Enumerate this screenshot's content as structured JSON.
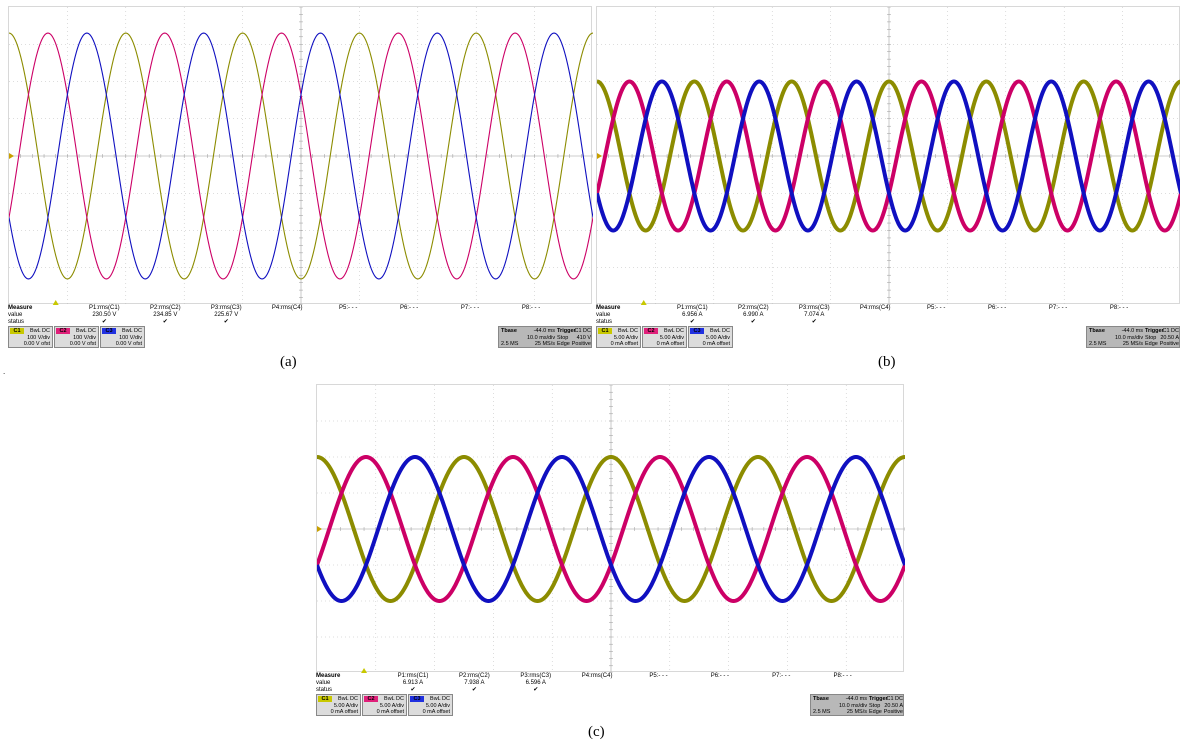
{
  "colors": {
    "c1": "#8c8c00",
    "c2": "#cc0066",
    "c3": "#1010c0",
    "grid": "#bbbbbb"
  },
  "panels": [
    {
      "id": "a",
      "caption": "(a)",
      "chart_data": {
        "type": "line",
        "x_unit_per_div": "10.0 ms/div",
        "x_divisions": 10,
        "y_divisions": 8,
        "amplitude_divs": 3.3,
        "cycles_on_screen": 5,
        "series": [
          {
            "channel": "C1",
            "phase_deg": 0
          },
          {
            "channel": "C2",
            "phase_deg": 120
          },
          {
            "channel": "C3",
            "phase_deg": 240
          }
        ]
      },
      "measure": {
        "title": "Measure",
        "row2": "value",
        "row3": "status",
        "params": [
          {
            "name": "P1:rms(C1)",
            "value": "230.50 V",
            "status": "✔"
          },
          {
            "name": "P2:rms(C2)",
            "value": "234.85 V",
            "status": "✔"
          },
          {
            "name": "P3:rms(C3)",
            "value": "225.67 V",
            "status": "✔"
          },
          {
            "name": "P4:rms(C4)",
            "value": "",
            "status": ""
          },
          {
            "name": "P5:- - -",
            "value": "",
            "status": ""
          },
          {
            "name": "P6:- - -",
            "value": "",
            "status": ""
          },
          {
            "name": "P7:- - -",
            "value": "",
            "status": ""
          },
          {
            "name": "P8:- - -",
            "value": "",
            "status": ""
          }
        ]
      },
      "channels": [
        {
          "tag": "C1",
          "coupling": "BwL DC",
          "scale": "100 V/div",
          "offset": "0.00 V ofst"
        },
        {
          "tag": "C2",
          "coupling": "BwL DC",
          "scale": "100 V/div",
          "offset": "0.00 V ofst"
        },
        {
          "tag": "C3",
          "coupling": "BwL DC",
          "scale": "100 V/div",
          "offset": "0.00 V ofst"
        }
      ],
      "timebase": {
        "label": "Tbase",
        "delay": "-44.0 ms",
        "per_div": "10.0 ms/div",
        "samples": "2.5 MS",
        "rate": "25 MS/s"
      },
      "trigger": {
        "label": "Trigger",
        "src": "C1 DC",
        "level": "410 V",
        "mode": "Stop",
        "type": "Edge",
        "slope": "Positive"
      }
    },
    {
      "id": "b",
      "caption": "(b)",
      "chart_data": {
        "type": "line",
        "x_unit_per_div": "10.0 ms/div",
        "x_divisions": 10,
        "y_divisions": 8,
        "amplitude_divs": 2.0,
        "cycles_on_screen": 6,
        "series": [
          {
            "channel": "C1",
            "phase_deg": 0
          },
          {
            "channel": "C2",
            "phase_deg": 120
          },
          {
            "channel": "C3",
            "phase_deg": 240
          }
        ]
      },
      "measure": {
        "title": "Measure",
        "row2": "value",
        "row3": "status",
        "params": [
          {
            "name": "P1:rms(C1)",
            "value": "6.956 A",
            "status": "✔"
          },
          {
            "name": "P2:rms(C2)",
            "value": "6.990 A",
            "status": "✔"
          },
          {
            "name": "P3:rms(C3)",
            "value": "7.074 A",
            "status": "✔"
          },
          {
            "name": "P4:rms(C4)",
            "value": "",
            "status": ""
          },
          {
            "name": "P5:- - -",
            "value": "",
            "status": ""
          },
          {
            "name": "P6:- - -",
            "value": "",
            "status": ""
          },
          {
            "name": "P7:- - -",
            "value": "",
            "status": ""
          },
          {
            "name": "P8:- - -",
            "value": "",
            "status": ""
          }
        ]
      },
      "channels": [
        {
          "tag": "C1",
          "coupling": "BwL DC",
          "scale": "5.00 A/div",
          "offset": "0 mA offset"
        },
        {
          "tag": "C2",
          "coupling": "BwL DC",
          "scale": "5.00 A/div",
          "offset": "0 mA offset"
        },
        {
          "tag": "C3",
          "coupling": "BwL DC",
          "scale": "5.00 A/div",
          "offset": "0 mA offset"
        }
      ],
      "timebase": {
        "label": "Tbase",
        "delay": "-44.0 ms",
        "per_div": "10.0 ms/div",
        "samples": "2.5 MS",
        "rate": "25 MS/s"
      },
      "trigger": {
        "label": "Trigger",
        "src": "C1 DC",
        "level": "20.50 A",
        "mode": "Stop",
        "type": "Edge",
        "slope": "Positive"
      }
    },
    {
      "id": "c",
      "caption": "(c)",
      "chart_data": {
        "type": "line",
        "x_unit_per_div": "10.0 ms/div",
        "x_divisions": 10,
        "y_divisions": 8,
        "amplitude_divs": 2.0,
        "cycles_on_screen": 4,
        "series": [
          {
            "channel": "C1",
            "phase_deg": 0
          },
          {
            "channel": "C2",
            "phase_deg": 120
          },
          {
            "channel": "C3",
            "phase_deg": 240
          }
        ]
      },
      "measure": {
        "title": "Measure",
        "row2": "value",
        "row3": "status",
        "params": [
          {
            "name": "P1:rms(C1)",
            "value": "6.913 A",
            "status": "✔"
          },
          {
            "name": "P2:rms(C2)",
            "value": "7.938 A",
            "status": "✔"
          },
          {
            "name": "P3:rms(C3)",
            "value": "6.596 A",
            "status": "✔"
          },
          {
            "name": "P4:rms(C4)",
            "value": "",
            "status": ""
          },
          {
            "name": "P5:- - -",
            "value": "",
            "status": ""
          },
          {
            "name": "P6:- - -",
            "value": "",
            "status": ""
          },
          {
            "name": "P7:- - -",
            "value": "",
            "status": ""
          },
          {
            "name": "P8:- - -",
            "value": "",
            "status": ""
          }
        ]
      },
      "channels": [
        {
          "tag": "C1",
          "coupling": "BwL DC",
          "scale": "5.00 A/div",
          "offset": "0 mA offset"
        },
        {
          "tag": "C2",
          "coupling": "BwL DC",
          "scale": "5.00 A/div",
          "offset": "0 mA offset"
        },
        {
          "tag": "C3",
          "coupling": "BwL DC",
          "scale": "5.00 A/div",
          "offset": "0 mA offset"
        }
      ],
      "timebase": {
        "label": "Tbase",
        "delay": "-44.0 ms",
        "per_div": "10.0 ms/div",
        "samples": "2.5 MS",
        "rate": "25 MS/s"
      },
      "trigger": {
        "label": "Trigger",
        "src": "C1 DC",
        "level": "20.50 A",
        "mode": "Stop",
        "type": "Edge",
        "slope": "Positive"
      }
    }
  ],
  "stray_mark": "."
}
